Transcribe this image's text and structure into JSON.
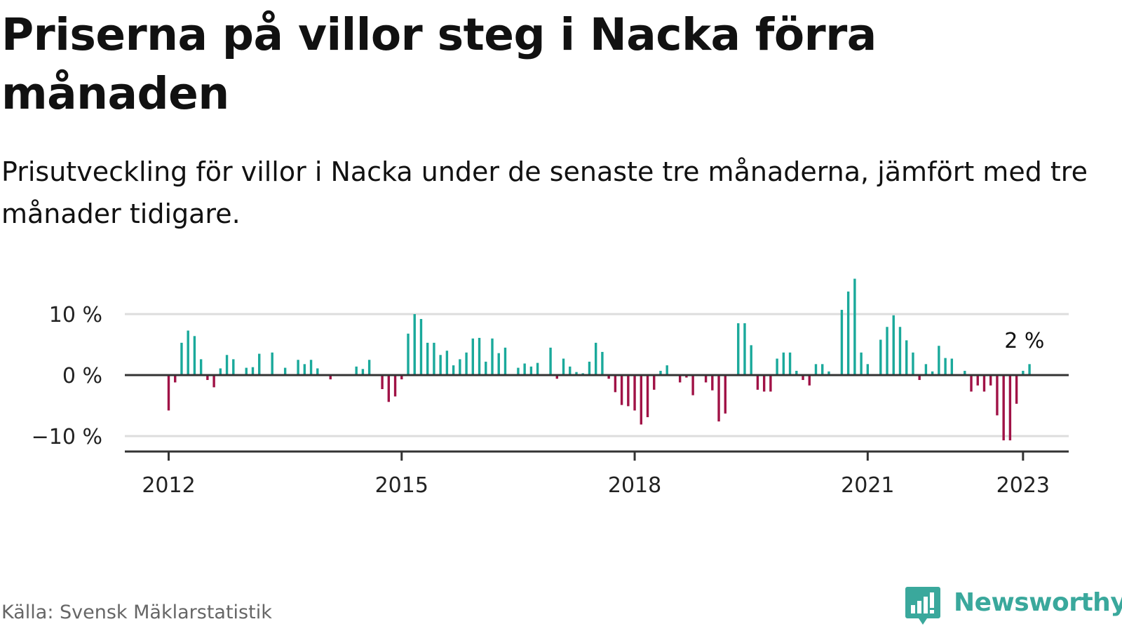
{
  "title": "Priserna på villor steg i Nacka förra månaden",
  "subtitle": "Prisutveckling för villor i Nacka under de senaste tre månaderna, jämfört med tre månader tidigare.",
  "source": "Källa: Svensk Mäklarstatistik",
  "brand": {
    "name": "Newsworthy",
    "icon": "newsworthy-logo-icon"
  },
  "colors": {
    "positive": "#1aa99b",
    "negative": "#a01246",
    "axis": "#333333",
    "grid": "#dddddd",
    "brand": "#3aa89c"
  },
  "chart_data": {
    "type": "bar",
    "start": "2012-01",
    "ylim": [
      -12.5,
      16
    ],
    "yticks": [
      10,
      0,
      -10
    ],
    "ytick_labels": [
      "10 %",
      "0 %",
      "−10 %"
    ],
    "xticks": [
      {
        "label": "2012",
        "date": "2012-01"
      },
      {
        "label": "2015",
        "date": "2015-01"
      },
      {
        "label": "2018",
        "date": "2018-01"
      },
      {
        "label": "2021",
        "date": "2021-01"
      },
      {
        "label": "2023",
        "date": "2023-01"
      }
    ],
    "annotation": {
      "text": "2 %",
      "date": "2023-01"
    },
    "grid": true,
    "values": [
      -5.8,
      -1.2,
      5.3,
      7.3,
      6.4,
      2.6,
      -0.8,
      -2.0,
      1.1,
      3.3,
      2.6,
      0,
      1.2,
      1.3,
      3.5,
      0,
      3.7,
      0,
      1.2,
      0,
      2.5,
      1.8,
      2.5,
      1.1,
      0,
      -0.7,
      0,
      0,
      0,
      1.4,
      1.0,
      2.5,
      0,
      -2.3,
      -4.4,
      -3.5,
      -0.7,
      6.8,
      10.0,
      9.2,
      5.3,
      5.3,
      3.3,
      4.0,
      1.6,
      2.6,
      3.7,
      6.0,
      6.1,
      2.2,
      6.0,
      3.6,
      4.5,
      0,
      1.2,
      1.9,
      1.4,
      2.0,
      0,
      4.5,
      -0.6,
      2.7,
      1.4,
      0.5,
      0.3,
      2.2,
      5.3,
      3.8,
      -0.6,
      -2.8,
      -4.9,
      -5.1,
      -5.8,
      -8.1,
      -6.9,
      -2.4,
      0.7,
      1.6,
      0,
      -1.2,
      -0.4,
      -3.3,
      0,
      -1.2,
      -2.5,
      -7.6,
      -6.3,
      0,
      8.5,
      8.5,
      4.9,
      -2.4,
      -2.7,
      -2.7,
      2.7,
      3.7,
      3.7,
      0.7,
      -0.8,
      -1.7,
      1.8,
      1.8,
      0.6,
      0,
      10.7,
      13.7,
      15.8,
      3.7,
      1.8,
      0,
      5.8,
      7.9,
      9.8,
      7.9,
      5.7,
      3.7,
      -0.8,
      1.8,
      0.6,
      4.8,
      2.8,
      2.7,
      0,
      0.7,
      -2.7,
      -1.7,
      -2.7,
      -1.7,
      -6.6,
      -10.7,
      -10.7,
      -4.7,
      0.7,
      1.8
    ]
  }
}
